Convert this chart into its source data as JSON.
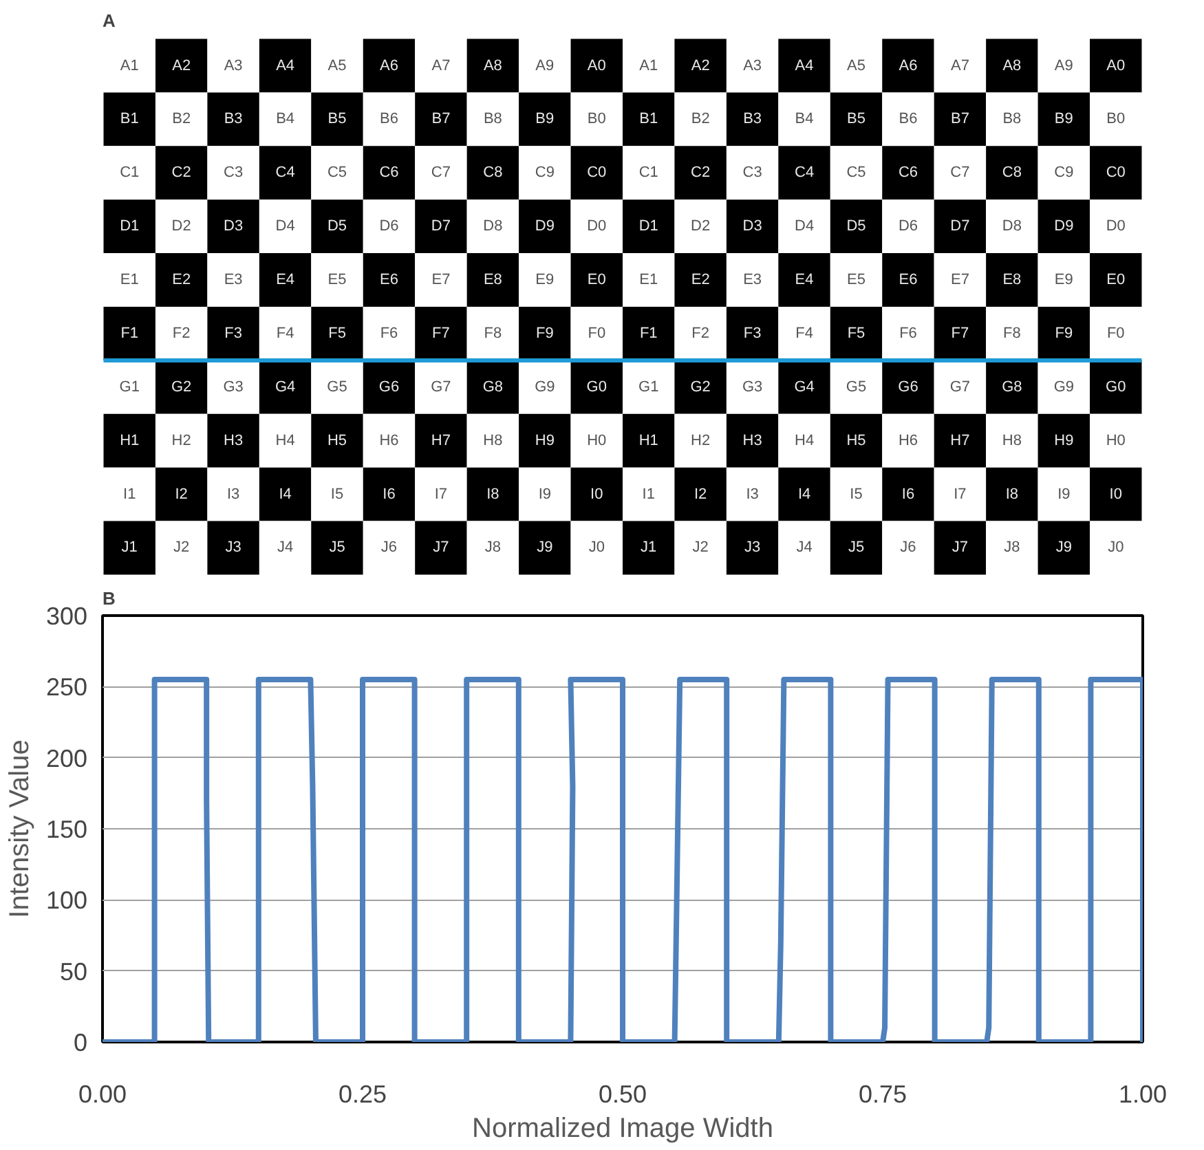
{
  "chart_data": [
    {
      "type": "other",
      "title": "A",
      "annotations": [
        "A1",
        "A2",
        "A3",
        "A4",
        "A5",
        "A6",
        "A7",
        "A8",
        "A9",
        "A0",
        "A1",
        "A2",
        "A3",
        "A4",
        "A5",
        "A6",
        "A7",
        "A8",
        "A9",
        "A0",
        "B1",
        "B2",
        "B3",
        "B4",
        "B5",
        "B6",
        "B7",
        "B8",
        "B9",
        "B0",
        "B1",
        "B2",
        "B3",
        "B4",
        "B5",
        "B6",
        "B7",
        "B8",
        "B9",
        "B0",
        "C1",
        "C2",
        "C3",
        "C4",
        "C5",
        "C6",
        "C7",
        "C8",
        "C9",
        "C0",
        "C1",
        "C2",
        "C3",
        "C4",
        "C5",
        "C6",
        "C7",
        "C8",
        "C9",
        "C0",
        "D1",
        "D2",
        "D3",
        "D4",
        "D5",
        "D6",
        "D7",
        "D8",
        "D9",
        "D0",
        "D1",
        "D2",
        "D3",
        "D4",
        "D5",
        "D6",
        "D7",
        "D8",
        "D9",
        "D0",
        "E1",
        "E2",
        "E3",
        "E4",
        "E5",
        "E6",
        "E7",
        "E8",
        "E9",
        "E0",
        "E1",
        "E2",
        "E3",
        "E4",
        "E5",
        "E6",
        "E7",
        "E8",
        "E9",
        "E0",
        "F1",
        "F2",
        "F3",
        "F4",
        "F5",
        "F6",
        "F7",
        "F8",
        "F9",
        "F0",
        "F1",
        "F2",
        "F3",
        "F4",
        "F5",
        "F6",
        "F7",
        "F8",
        "F9",
        "F0",
        "G1",
        "G2",
        "G3",
        "G4",
        "G5",
        "G6",
        "G7",
        "G8",
        "G9",
        "G0",
        "G1",
        "G2",
        "G3",
        "G4",
        "G5",
        "G6",
        "G7",
        "G8",
        "G9",
        "G0",
        "H1",
        "H2",
        "H3",
        "H4",
        "H5",
        "H6",
        "H7",
        "H8",
        "H9",
        "H0",
        "H1",
        "H2",
        "H3",
        "H4",
        "H5",
        "H6",
        "H7",
        "H8",
        "H9",
        "H0",
        "I1",
        "I2",
        "I3",
        "I4",
        "I5",
        "I6",
        "I7",
        "I8",
        "I9",
        "I0",
        "I1",
        "I2",
        "I3",
        "I4",
        "I5",
        "I6",
        "I7",
        "I8",
        "I9",
        "I0",
        "J1",
        "J2",
        "J3",
        "J4",
        "J5",
        "J6",
        "J7",
        "J8",
        "J9",
        "J0",
        "J1",
        "J2",
        "J3",
        "J4",
        "J5",
        "J6",
        "J7",
        "J8",
        "J9",
        "J0"
      ]
    },
    {
      "type": "line",
      "title": "B",
      "xlabel": "Normalized Image Width",
      "ylabel": "Intensity Value",
      "xlim": [
        0,
        1
      ],
      "ylim": [
        0,
        300
      ],
      "xticks": [
        {
          "value": 0,
          "label": "0.00"
        },
        {
          "value": 0.25,
          "label": "0.25"
        },
        {
          "value": 0.5,
          "label": "0.50"
        },
        {
          "value": 0.75,
          "label": "0.75"
        },
        {
          "value": 1,
          "label": "1.00"
        }
      ],
      "yticks": [
        0,
        50,
        100,
        150,
        200,
        250,
        300
      ],
      "grid": "y",
      "marker": "none",
      "line_style": "solid",
      "series": [
        {
          "color": "#4f81bd",
          "x": [
            0,
            0.05,
            0.05,
            0.1,
            0.1,
            0.102,
            0.15,
            0.15,
            0.2,
            0.202,
            0.205,
            0.25,
            0.25,
            0.3,
            0.3,
            0.35,
            0.35,
            0.4,
            0.4,
            0.45,
            0.452,
            0.45,
            0.5,
            0.5,
            0.55,
            0.552,
            0.555,
            0.6,
            0.6,
            0.65,
            0.652,
            0.655,
            0.7,
            0.7,
            0.75,
            0.752,
            0.755,
            0.8,
            0.8,
            0.85,
            0.852,
            0.855,
            0.9,
            0.9,
            0.95,
            0.95,
            1.0,
            1.0,
            1.0
          ],
          "values": [
            0,
            0,
            255,
            255,
            170,
            0,
            0,
            255,
            255,
            180,
            0,
            0,
            255,
            255,
            0,
            0,
            255,
            255,
            0,
            0,
            180,
            255,
            255,
            0,
            0,
            100,
            255,
            255,
            0,
            0,
            70,
            255,
            255,
            0,
            0,
            10,
            255,
            255,
            0,
            0,
            10,
            255,
            255,
            0,
            0,
            255,
            255,
            70,
            0
          ]
        }
      ]
    }
  ]
}
